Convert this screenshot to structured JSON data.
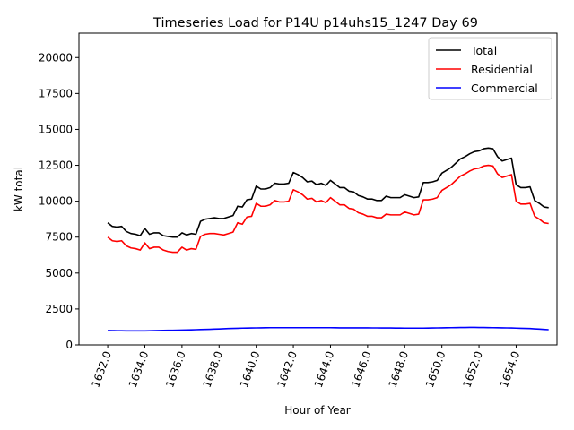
{
  "chart_data": {
    "type": "line",
    "title": "Timeseries Load for P14U p14uhs15_1247  Day 69",
    "xlabel": "Hour of Year",
    "ylabel": "kW total",
    "xlim": [
      1630.45,
      1656.2
    ],
    "ylim": [
      0,
      21700
    ],
    "x_ticks": [
      1632,
      1634,
      1636,
      1638,
      1640,
      1642,
      1644,
      1646,
      1648,
      1650,
      1652,
      1654
    ],
    "x_tick_labels": [
      "1632.0",
      "1634.0",
      "1636.0",
      "1638.0",
      "1640.0",
      "1642.0",
      "1644.0",
      "1646.0",
      "1648.0",
      "1650.0",
      "1652.0",
      "1654.0"
    ],
    "y_ticks": [
      0,
      2500,
      5000,
      7500,
      10000,
      12500,
      15000,
      17500,
      20000
    ],
    "y_tick_labels": [
      "0",
      "2500",
      "5000",
      "7500",
      "10000",
      "12500",
      "15000",
      "17500",
      "20000"
    ],
    "legend_position": "top-right",
    "grid": false,
    "x": [
      1632.0,
      1632.25,
      1632.5,
      1632.75,
      1633.0,
      1633.25,
      1633.5,
      1633.75,
      1634.0,
      1634.25,
      1634.5,
      1634.75,
      1635.0,
      1635.25,
      1635.5,
      1635.75,
      1636.0,
      1636.25,
      1636.5,
      1636.75,
      1637.0,
      1637.25,
      1637.5,
      1637.75,
      1638.0,
      1638.25,
      1638.5,
      1638.75,
      1639.0,
      1639.25,
      1639.5,
      1639.75,
      1640.0,
      1640.25,
      1640.5,
      1640.75,
      1641.0,
      1641.25,
      1641.5,
      1641.75,
      1642.0,
      1642.25,
      1642.5,
      1642.75,
      1643.0,
      1643.25,
      1643.5,
      1643.75,
      1644.0,
      1644.25,
      1644.5,
      1644.75,
      1645.0,
      1645.25,
      1645.5,
      1645.75,
      1646.0,
      1646.25,
      1646.5,
      1646.75,
      1647.0,
      1647.25,
      1647.5,
      1647.75,
      1648.0,
      1648.25,
      1648.5,
      1648.75,
      1649.0,
      1649.25,
      1649.5,
      1649.75,
      1650.0,
      1650.25,
      1650.5,
      1650.75,
      1651.0,
      1651.25,
      1651.5,
      1651.75,
      1652.0,
      1652.25,
      1652.5,
      1652.75,
      1653.0,
      1653.25,
      1653.5,
      1653.75,
      1654.0,
      1654.25,
      1654.5,
      1654.75,
      1655.0,
      1655.25,
      1655.5,
      1655.75
    ],
    "series": [
      {
        "name": "Total",
        "color": "#000000",
        "values": [
          8500,
          8250,
          8200,
          8250,
          7900,
          7750,
          7700,
          7600,
          8100,
          7700,
          7800,
          7800,
          7600,
          7550,
          7500,
          7500,
          7800,
          7650,
          7750,
          7700,
          8600,
          8750,
          8800,
          8850,
          8800,
          8800,
          8900,
          9000,
          9650,
          9600,
          10100,
          10150,
          11050,
          10850,
          10850,
          10950,
          11250,
          11200,
          11200,
          11250,
          12000,
          11850,
          11650,
          11350,
          11400,
          11150,
          11250,
          11100,
          11450,
          11200,
          10950,
          10950,
          10700,
          10650,
          10400,
          10300,
          10150,
          10150,
          10050,
          10050,
          10350,
          10250,
          10250,
          10250,
          10450,
          10350,
          10250,
          10300,
          11300,
          11300,
          11350,
          11450,
          11950,
          12150,
          12350,
          12650,
          12950,
          13100,
          13300,
          13450,
          13500,
          13650,
          13700,
          13650,
          13100,
          12800,
          12900,
          13000,
          11150,
          10950,
          10950,
          11000,
          10050,
          9850,
          9600,
          9550
        ]
      },
      {
        "name": "Residential",
        "color": "#ff0000",
        "values": [
          7500,
          7250,
          7200,
          7250,
          6900,
          6750,
          6700,
          6600,
          7100,
          6700,
          6800,
          6800,
          6600,
          6500,
          6450,
          6450,
          6800,
          6600,
          6700,
          6650,
          7550,
          7700,
          7750,
          7750,
          7700,
          7650,
          7750,
          7850,
          8500,
          8400,
          8900,
          8950,
          9850,
          9650,
          9650,
          9750,
          10050,
          9950,
          9950,
          10000,
          10800,
          10650,
          10450,
          10150,
          10200,
          9950,
          10050,
          9900,
          10250,
          10000,
          9750,
          9750,
          9500,
          9450,
          9200,
          9100,
          8950,
          8950,
          8850,
          8850,
          9100,
          9050,
          9050,
          9050,
          9250,
          9150,
          9050,
          9100,
          10100,
          10100,
          10150,
          10250,
          10750,
          10950,
          11150,
          11450,
          11750,
          11900,
          12100,
          12250,
          12300,
          12450,
          12500,
          12450,
          11900,
          11650,
          11750,
          11850,
          10000,
          9800,
          9800,
          9850,
          8950,
          8750,
          8500,
          8450
        ]
      },
      {
        "name": "Commercial",
        "color": "#0000ff",
        "values": [
          1000,
          995,
          990,
          985,
          980,
          978,
          975,
          975,
          980,
          985,
          995,
          1005,
          1010,
          1015,
          1020,
          1025,
          1030,
          1040,
          1050,
          1060,
          1070,
          1080,
          1090,
          1100,
          1110,
          1125,
          1140,
          1150,
          1160,
          1170,
          1175,
          1180,
          1185,
          1190,
          1195,
          1200,
          1200,
          1200,
          1200,
          1200,
          1200,
          1200,
          1200,
          1200,
          1200,
          1200,
          1200,
          1200,
          1200,
          1195,
          1190,
          1190,
          1190,
          1190,
          1190,
          1190,
          1190,
          1185,
          1185,
          1180,
          1180,
          1180,
          1175,
          1175,
          1170,
          1170,
          1170,
          1170,
          1170,
          1175,
          1180,
          1185,
          1190,
          1195,
          1200,
          1205,
          1210,
          1215,
          1220,
          1220,
          1215,
          1210,
          1205,
          1200,
          1195,
          1190,
          1185,
          1180,
          1170,
          1160,
          1150,
          1140,
          1120,
          1100,
          1080,
          1060
        ]
      }
    ]
  }
}
